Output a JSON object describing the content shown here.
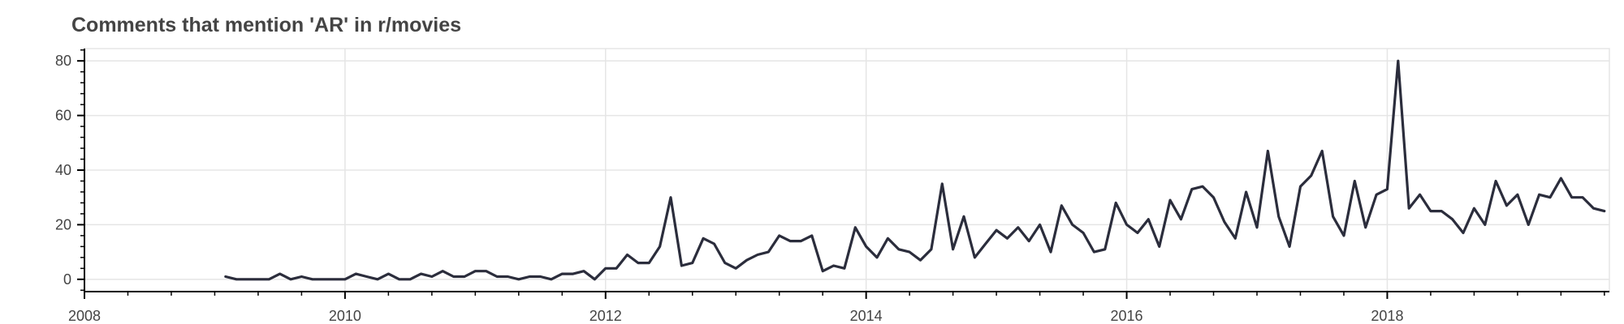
{
  "chart_data": {
    "type": "line",
    "title": "Comments that mention 'AR' in r/movies",
    "xlabel": "",
    "ylabel": "",
    "xlim": [
      "2008-01-01",
      "2019-09-15"
    ],
    "ylim": [
      -4.5,
      84.5
    ],
    "x_ticks": [
      "2008",
      "2010",
      "2012",
      "2014",
      "2016",
      "2018"
    ],
    "y_ticks": [
      0,
      20,
      40,
      60,
      80
    ],
    "grid": true,
    "legend": "none",
    "colors": {
      "line": "#2b2d3c",
      "grid": "#e5e5e5",
      "axis": "#000000",
      "text": "#444444"
    },
    "series": [
      {
        "x": [
          "2009-02",
          "2009-03",
          "2009-04",
          "2009-05",
          "2009-06",
          "2009-07",
          "2009-08",
          "2009-09",
          "2009-10",
          "2009-11",
          "2009-12",
          "2010-01",
          "2010-02",
          "2010-03",
          "2010-04",
          "2010-05",
          "2010-06",
          "2010-07",
          "2010-08",
          "2010-09",
          "2010-10",
          "2010-11",
          "2010-12",
          "2011-01",
          "2011-02",
          "2011-03",
          "2011-04",
          "2011-05",
          "2011-06",
          "2011-07",
          "2011-08",
          "2011-09",
          "2011-10",
          "2011-11",
          "2011-12",
          "2012-01",
          "2012-02",
          "2012-03",
          "2012-04",
          "2012-05",
          "2012-06",
          "2012-07",
          "2012-08",
          "2012-09",
          "2012-10",
          "2012-11",
          "2012-12",
          "2013-01",
          "2013-02",
          "2013-03",
          "2013-04",
          "2013-05",
          "2013-06",
          "2013-07",
          "2013-08",
          "2013-09",
          "2013-10",
          "2013-11",
          "2013-12",
          "2014-01",
          "2014-02",
          "2014-03",
          "2014-04",
          "2014-05",
          "2014-06",
          "2014-07",
          "2014-08",
          "2014-09",
          "2014-10",
          "2014-11",
          "2014-12",
          "2015-01",
          "2015-02",
          "2015-03",
          "2015-04",
          "2015-05",
          "2015-06",
          "2015-07",
          "2015-08",
          "2015-09",
          "2015-10",
          "2015-11",
          "2015-12",
          "2016-01",
          "2016-02",
          "2016-03",
          "2016-04",
          "2016-05",
          "2016-06",
          "2016-07",
          "2016-08",
          "2016-09",
          "2016-10",
          "2016-11",
          "2016-12",
          "2017-01",
          "2017-02",
          "2017-03",
          "2017-04",
          "2017-05",
          "2017-06",
          "2017-07",
          "2017-08",
          "2017-09",
          "2017-10",
          "2017-11",
          "2017-12",
          "2018-01",
          "2018-02",
          "2018-03",
          "2018-04",
          "2018-05",
          "2018-06",
          "2018-07",
          "2018-08",
          "2018-09",
          "2018-10",
          "2018-11",
          "2018-12",
          "2019-01",
          "2019-02",
          "2019-03",
          "2019-04",
          "2019-05",
          "2019-06",
          "2019-07",
          "2019-08",
          "2019-09"
        ],
        "values": [
          1,
          0,
          0,
          0,
          0,
          2,
          0,
          1,
          0,
          0,
          0,
          0,
          2,
          1,
          0,
          2,
          0,
          0,
          2,
          1,
          3,
          1,
          1,
          3,
          3,
          1,
          1,
          0,
          1,
          1,
          0,
          2,
          2,
          3,
          0,
          4,
          4,
          9,
          6,
          6,
          12,
          30,
          5,
          6,
          15,
          13,
          6,
          4,
          7,
          9,
          10,
          16,
          14,
          14,
          16,
          3,
          5,
          4,
          19,
          12,
          8,
          15,
          11,
          10,
          7,
          11,
          35,
          11,
          23,
          8,
          13,
          18,
          15,
          19,
          14,
          20,
          10,
          27,
          20,
          17,
          10,
          11,
          28,
          20,
          17,
          22,
          12,
          29,
          22,
          33,
          34,
          30,
          21,
          15,
          32,
          19,
          47,
          23,
          12,
          34,
          38,
          47,
          23,
          16,
          36,
          19,
          31,
          33,
          80,
          26,
          31,
          25,
          25,
          22,
          17,
          26,
          20,
          36,
          27,
          31,
          20,
          31,
          30,
          37,
          30,
          30,
          26,
          25
        ]
      }
    ]
  }
}
